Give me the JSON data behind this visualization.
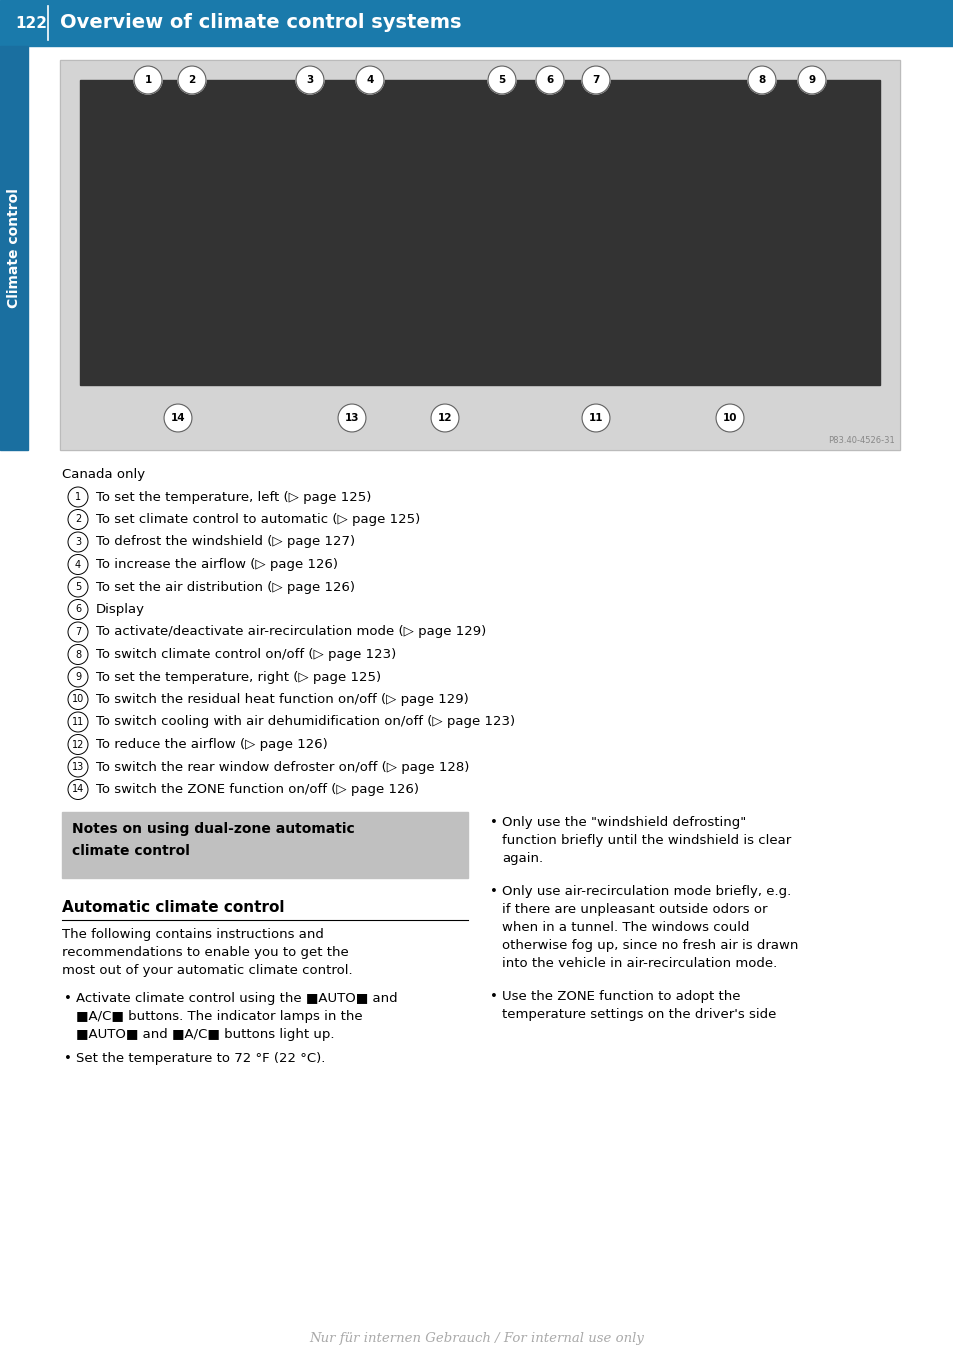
{
  "page_number": "122",
  "header_title": "Overview of climate control systems",
  "header_bg": "#1a7aab",
  "header_text_color": "#ffffff",
  "sidebar_label": "Climate control",
  "sidebar_bg": "#1a6fa0",
  "sidebar_text_color": "#ffffff",
  "page_bg": "#ffffff",
  "image_bg": "#d4d4d4",
  "canada_only": "Canada only",
  "items": [
    {
      "num": "1",
      "text": "To set the temperature, left (▷ page 125)"
    },
    {
      "num": "2",
      "text": "To set climate control to automatic (▷ page 125)"
    },
    {
      "num": "3",
      "text": "To defrost the windshield (▷ page 127)"
    },
    {
      "num": "4",
      "text": "To increase the airflow (▷ page 126)"
    },
    {
      "num": "5",
      "text": "To set the air distribution (▷ page 126)"
    },
    {
      "num": "6",
      "text": "Display"
    },
    {
      "num": "7",
      "text": "To activate/deactivate air-recirculation mode (▷ page 129)"
    },
    {
      "num": "8",
      "text": "To switch climate control on/off (▷ page 123)"
    },
    {
      "num": "9",
      "text": "To set the temperature, right (▷ page 125)"
    },
    {
      "num": "10",
      "text": "To switch the residual heat function on/off (▷ page 129)"
    },
    {
      "num": "11",
      "text": "To switch cooling with air dehumidification on/off (▷ page 123)"
    },
    {
      "num": "12",
      "text": "To reduce the airflow (▷ page 126)"
    },
    {
      "num": "13",
      "text": "To switch the rear window defroster on/off (▷ page 128)"
    },
    {
      "num": "14",
      "text": "To switch the ZONE function on/off (▷ page 126)"
    }
  ],
  "note_box_bg": "#c0c0c0",
  "note_box_title_line1": "Notes on using dual-zone automatic",
  "note_box_title_line2": "climate control",
  "section_title": "Automatic climate control",
  "section_body_lines": [
    "The following contains instructions and",
    "recommendations to enable you to get the",
    "most out of your automatic climate control."
  ],
  "left_bullet1_lines": [
    "Activate climate control using the ■AUTO■ and",
    "■A/C■ buttons. The indicator lamps in the",
    "■AUTO■ and ■A/C■ buttons light up."
  ],
  "left_bullet2": "Set the temperature to 72 °F (22 °C).",
  "right_bullet1_lines": [
    "Only use the \"windshield defrosting\"",
    "function briefly until the windshield is clear",
    "again."
  ],
  "right_bullet2_lines": [
    "Only use air-recirculation mode briefly, e.g.",
    "if there are unpleasant outside odors or",
    "when in a tunnel. The windows could",
    "otherwise fog up, since no fresh air is drawn",
    "into the vehicle in air-recirculation mode."
  ],
  "right_bullet3_lines": [
    "Use the ZONE function to adopt the",
    "temperature settings on the driver's side"
  ],
  "watermark": "Nur für internen Gebrauch / For internal use only",
  "img_credit": "P83.40-4526-31"
}
